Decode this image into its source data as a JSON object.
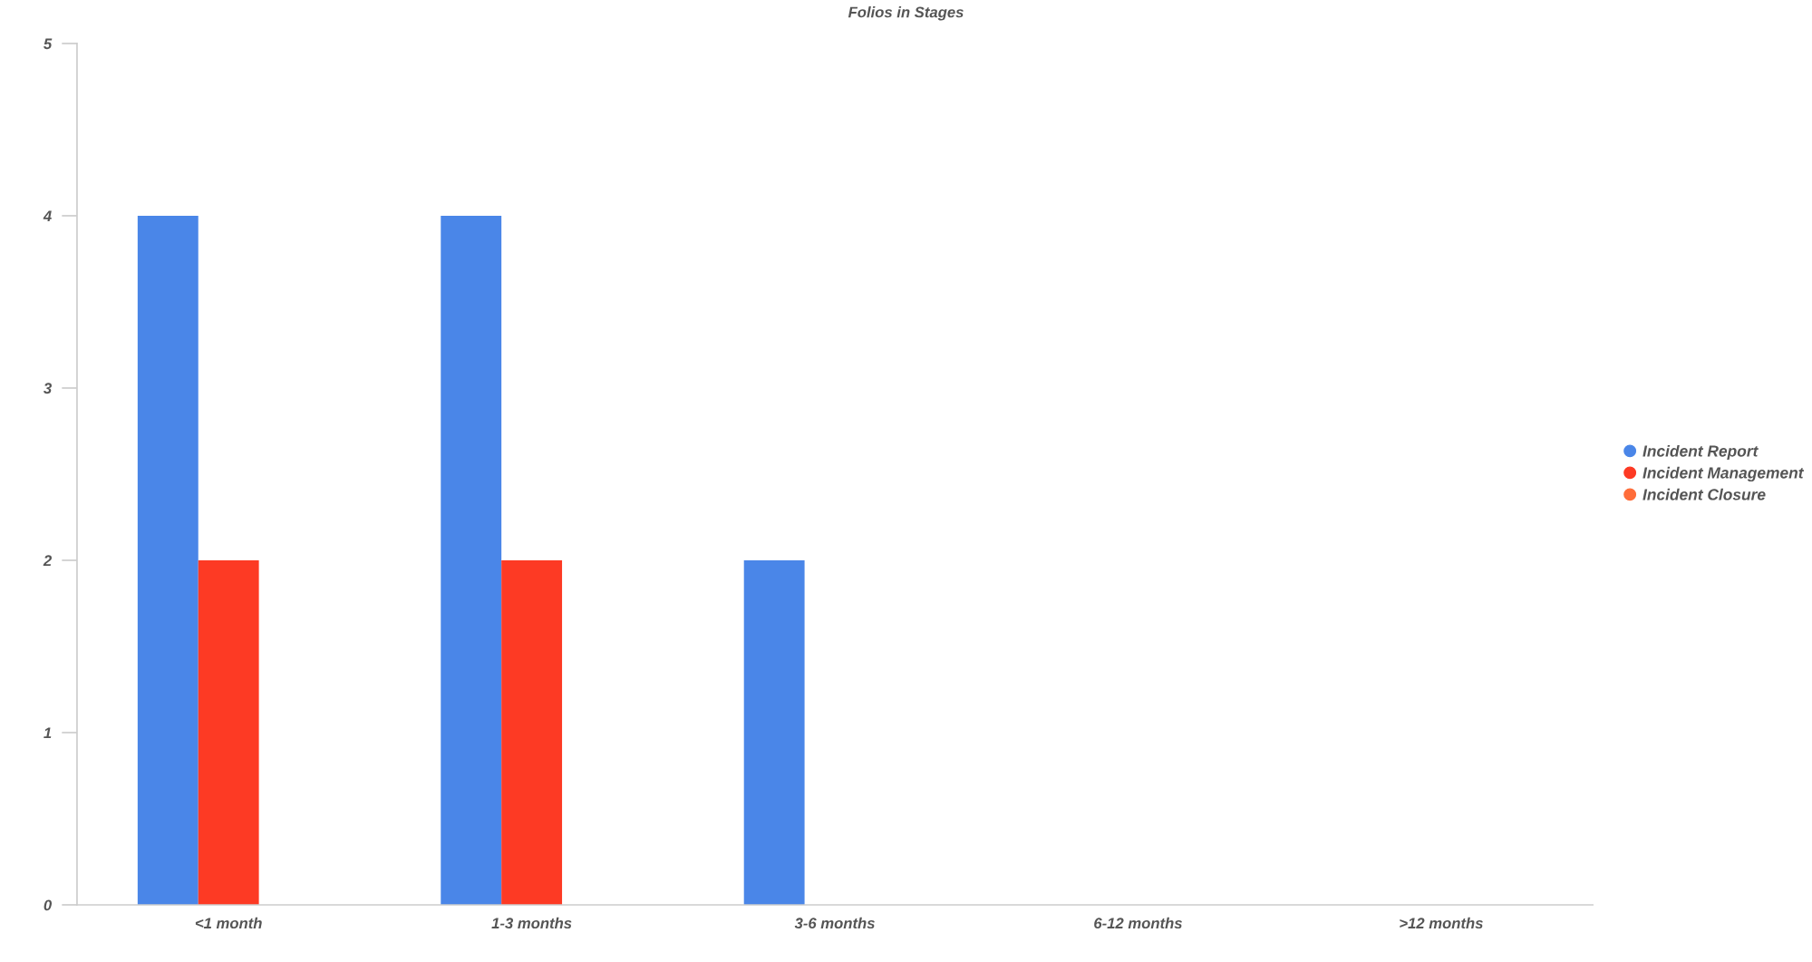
{
  "chart_data": {
    "type": "bar",
    "title": "Folios in Stages",
    "categories": [
      "<1 month",
      "1-3 months",
      "3-6 months",
      "6-12 months",
      ">12 months"
    ],
    "series": [
      {
        "name": "Incident Report",
        "color": "#4a86e8",
        "values": [
          4,
          4,
          2,
          0,
          0
        ]
      },
      {
        "name": "Incident Management",
        "color": "#fd3a24",
        "values": [
          2,
          2,
          0,
          0,
          0
        ]
      },
      {
        "name": "Incident Closure",
        "color": "#ff6d3a",
        "values": [
          0,
          0,
          0,
          0,
          0
        ]
      }
    ],
    "ylim": [
      0,
      5
    ],
    "yticks": [
      0,
      1,
      2,
      3,
      4,
      5
    ],
    "grid": false,
    "legend": "right"
  }
}
